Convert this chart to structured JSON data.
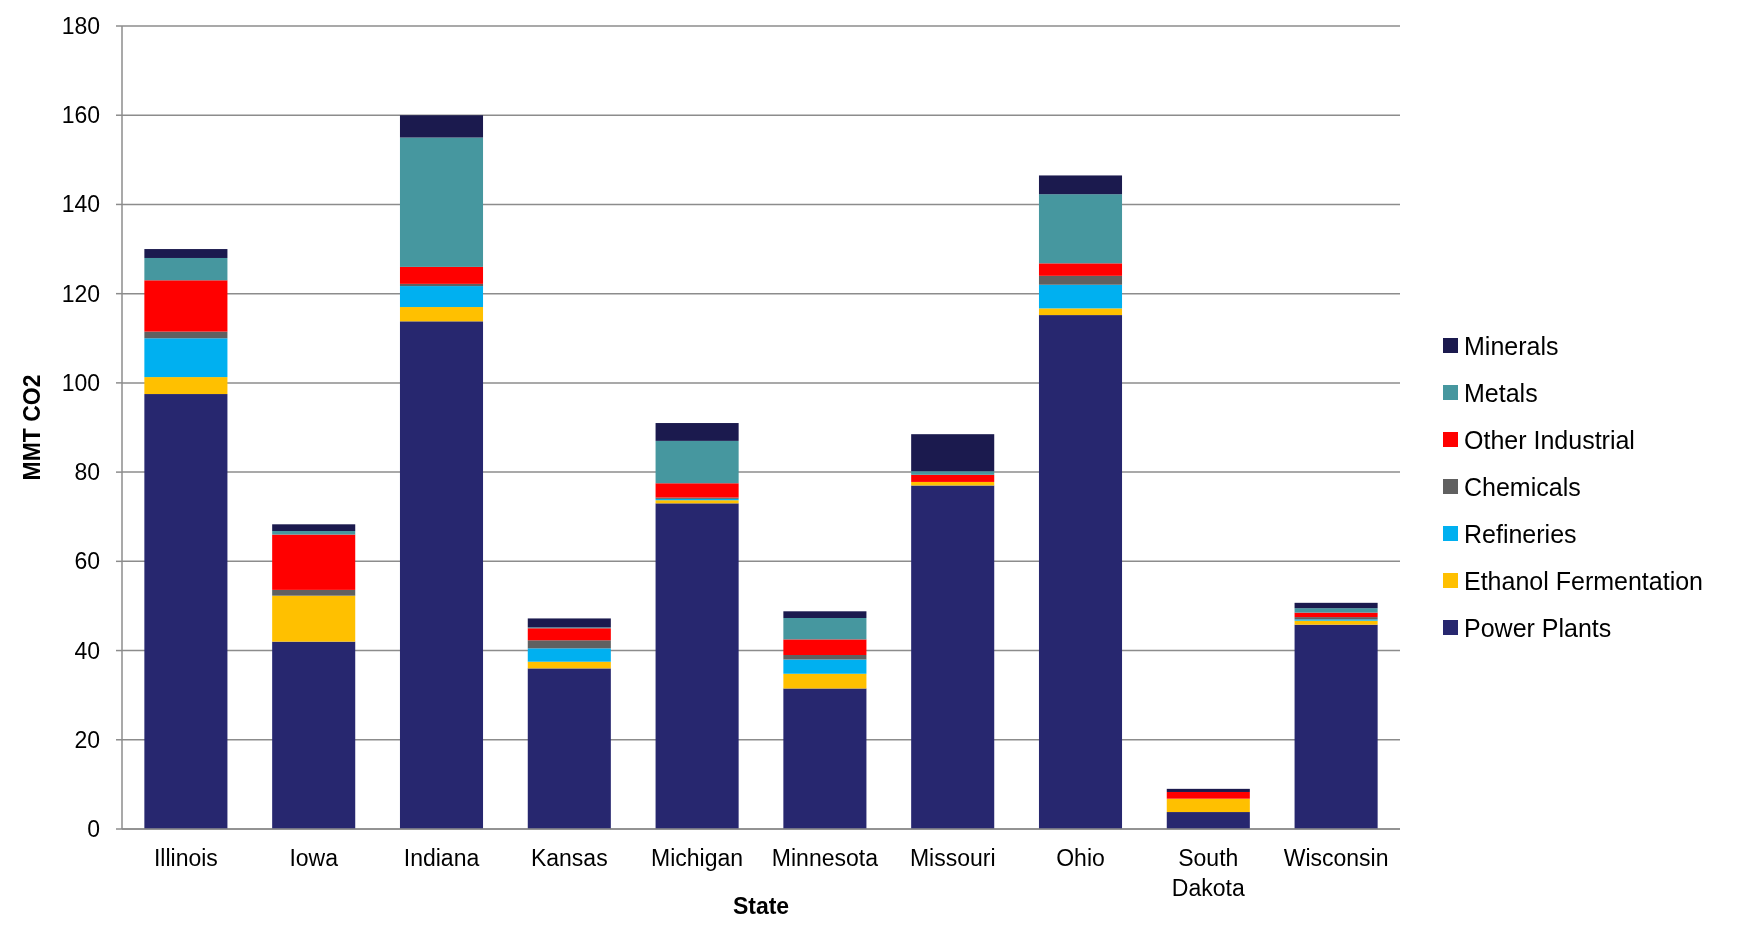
{
  "chart_data": {
    "type": "bar",
    "stacked": true,
    "xlabel": "State",
    "ylabel": "MMT CO2",
    "categories": [
      "Illinois",
      "Iowa",
      "Indiana",
      "Kansas",
      "Michigan",
      "Minnesota",
      "Missouri",
      "Ohio",
      "South Dakota",
      "Wisconsin"
    ],
    "series": [
      {
        "name": "Power Plants",
        "color": "#27276f",
        "values": [
          97.5,
          42,
          113.8,
          36,
          73,
          31.5,
          77,
          115.2,
          3.8,
          45.8
        ]
      },
      {
        "name": "Ethanol Fermentation",
        "color": "#ffc000",
        "values": [
          3.8,
          10.3,
          3.2,
          1.5,
          0.7,
          3.3,
          0.8,
          1.5,
          3,
          0.9
        ]
      },
      {
        "name": "Refineries",
        "color": "#00b0f0",
        "values": [
          8.7,
          0,
          4.7,
          3,
          0.3,
          3.2,
          0,
          5.3,
          0,
          0.3
        ]
      },
      {
        "name": "Chemicals",
        "color": "#606060",
        "values": [
          1.5,
          1.3,
          0.5,
          1.8,
          0.3,
          1,
          0,
          2,
          0,
          0.5
        ]
      },
      {
        "name": "Other Industrial",
        "color": "#ff0000",
        "values": [
          11.5,
          12.4,
          3.8,
          2.7,
          3.2,
          3.5,
          1.6,
          2.8,
          1.5,
          1
        ]
      },
      {
        "name": "Metals",
        "color": "#46979f",
        "values": [
          5,
          0.8,
          29,
          0.2,
          9.5,
          4.8,
          0.8,
          15.5,
          0,
          1
        ]
      },
      {
        "name": "Minerals",
        "color": "#1b1a4e",
        "values": [
          2,
          1.5,
          5,
          2,
          4,
          1.5,
          8.3,
          4.2,
          0.7,
          1.2
        ]
      }
    ],
    "ylim": [
      0,
      180
    ],
    "yticks": [
      0,
      20,
      40,
      60,
      80,
      100,
      120,
      140,
      160,
      180
    ],
    "grid": "y",
    "legend": "right"
  }
}
